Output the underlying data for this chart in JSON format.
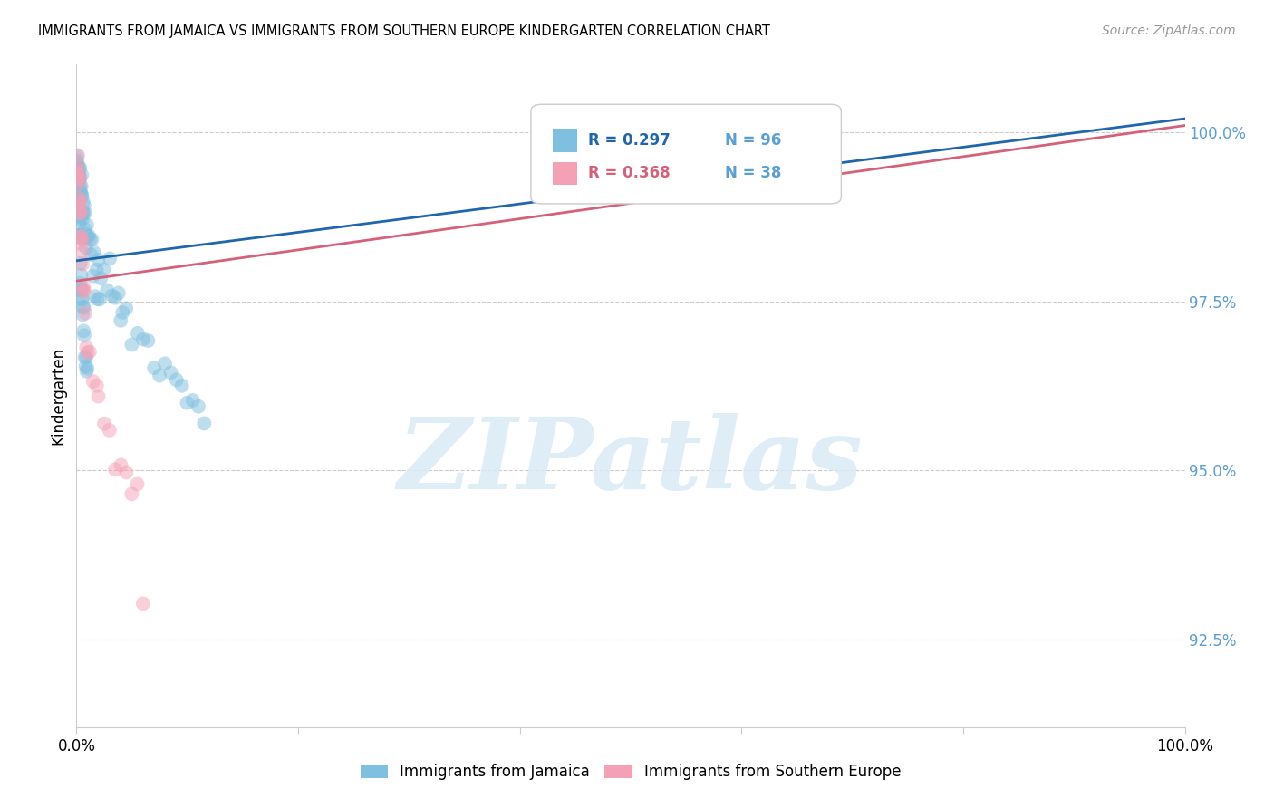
{
  "title": "IMMIGRANTS FROM JAMAICA VS IMMIGRANTS FROM SOUTHERN EUROPE KINDERGARTEN CORRELATION CHART",
  "source": "Source: ZipAtlas.com",
  "ylabel": "Kindergarten",
  "yticks": [
    92.5,
    95.0,
    97.5,
    100.0
  ],
  "ytick_labels": [
    "92.5%",
    "95.0%",
    "97.5%",
    "100.0%"
  ],
  "xlim": [
    0.0,
    100.0
  ],
  "ylim": [
    91.2,
    101.0
  ],
  "color_blue": "#7fbfdf",
  "color_pink": "#f4a0b5",
  "color_blue_line": "#2166ac",
  "color_pink_line": "#d6607a",
  "color_axis_label": "#5a9fd4",
  "watermark": "ZIPatlas",
  "legend_label1": "Immigrants from Jamaica",
  "legend_label2": "Immigrants from Southern Europe",
  "legend_r1": "R = 0.297",
  "legend_n1": "N = 96",
  "legend_r2": "R = 0.368",
  "legend_n2": "N = 38",
  "jamaica_x": [
    0.05,
    0.08,
    0.1,
    0.12,
    0.15,
    0.18,
    0.2,
    0.22,
    0.25,
    0.28,
    0.3,
    0.32,
    0.35,
    0.38,
    0.4,
    0.42,
    0.45,
    0.48,
    0.5,
    0.52,
    0.55,
    0.58,
    0.6,
    0.65,
    0.7,
    0.75,
    0.8,
    0.85,
    0.9,
    0.95,
    1.0,
    1.2,
    1.4,
    1.6,
    1.8,
    2.0,
    2.2,
    2.5,
    2.8,
    3.0,
    3.2,
    3.5,
    3.8,
    4.0,
    4.2,
    4.5,
    5.0,
    5.5,
    6.0,
    6.5,
    7.0,
    7.5,
    8.0,
    8.5,
    9.0,
    9.5,
    10.0,
    10.5,
    11.0,
    11.5,
    0.05,
    0.07,
    0.09,
    0.11,
    0.13,
    0.16,
    0.19,
    0.21,
    0.24,
    0.27,
    0.31,
    0.33,
    0.36,
    0.39,
    0.41,
    0.44,
    0.46,
    0.49,
    0.51,
    0.54,
    0.57,
    0.59,
    0.62,
    0.67,
    0.72,
    0.77,
    0.82,
    0.87,
    0.92,
    0.97,
    1.1,
    1.3,
    1.5,
    1.7,
    1.9,
    2.1
  ],
  "jamaica_y": [
    99.6,
    99.5,
    99.5,
    99.4,
    99.6,
    99.5,
    99.4,
    99.5,
    99.3,
    99.4,
    99.2,
    99.3,
    99.1,
    99.2,
    99.0,
    99.1,
    99.2,
    99.0,
    99.1,
    99.0,
    98.8,
    98.9,
    98.8,
    98.7,
    98.8,
    98.7,
    98.6,
    98.5,
    98.4,
    98.3,
    98.6,
    98.5,
    98.4,
    98.3,
    98.2,
    98.1,
    98.0,
    97.9,
    97.8,
    97.9,
    97.7,
    97.6,
    97.5,
    97.4,
    97.3,
    97.2,
    97.1,
    97.0,
    96.9,
    96.8,
    96.7,
    96.6,
    96.5,
    96.4,
    96.3,
    96.2,
    96.1,
    96.0,
    95.9,
    95.8,
    99.3,
    99.2,
    99.1,
    99.0,
    98.9,
    98.8,
    98.7,
    98.6,
    98.5,
    98.4,
    98.3,
    98.2,
    98.1,
    98.0,
    97.9,
    97.8,
    97.7,
    97.6,
    97.5,
    97.4,
    97.3,
    97.2,
    97.1,
    97.0,
    96.9,
    96.8,
    96.7,
    96.6,
    96.5,
    96.4,
    98.4,
    98.2,
    98.0,
    97.8,
    97.6,
    97.4
  ],
  "s_europe_x": [
    0.05,
    0.08,
    0.1,
    0.12,
    0.15,
    0.18,
    0.2,
    0.22,
    0.25,
    0.28,
    0.3,
    0.32,
    0.35,
    0.38,
    0.4,
    0.42,
    0.45,
    0.48,
    0.5,
    0.55,
    0.6,
    0.65,
    0.7,
    0.8,
    0.9,
    1.0,
    1.2,
    1.5,
    1.8,
    2.0,
    2.5,
    3.0,
    3.5,
    4.0,
    4.5,
    5.0,
    5.5,
    6.0
  ],
  "s_europe_y": [
    99.5,
    99.4,
    99.5,
    99.3,
    99.4,
    99.3,
    99.2,
    99.3,
    99.1,
    99.2,
    98.9,
    99.0,
    98.8,
    98.7,
    98.6,
    98.5,
    98.4,
    98.3,
    98.2,
    98.0,
    97.8,
    97.6,
    97.4,
    97.2,
    97.0,
    96.8,
    96.6,
    96.4,
    96.2,
    96.0,
    95.8,
    95.6,
    95.4,
    95.2,
    95.0,
    94.8,
    94.6,
    93.2
  ]
}
